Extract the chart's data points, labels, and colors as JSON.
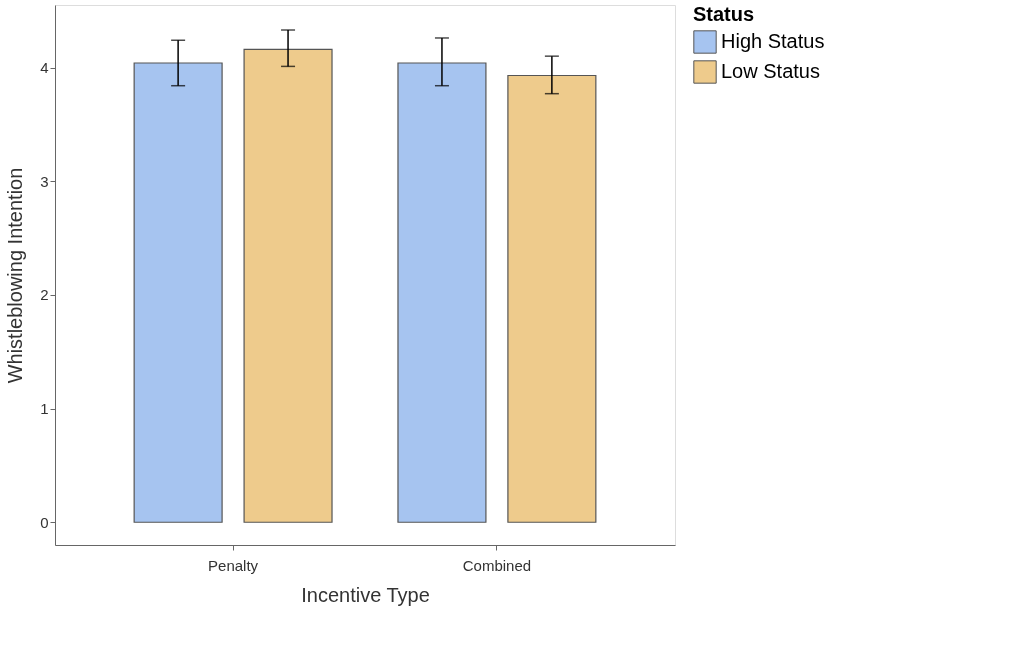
{
  "chart_data": {
    "type": "bar",
    "xlabel": "Incentive Type",
    "ylabel": "Whistleblowing Intention",
    "legend_title": "Status",
    "categories": [
      "Penalty",
      "Combined"
    ],
    "series": [
      {
        "name": "High Status",
        "color": "#a6c4f0",
        "values": [
          4.04,
          4.04
        ],
        "errors": [
          [
            3.84,
            4.24
          ],
          [
            3.84,
            4.26
          ]
        ]
      },
      {
        "name": "Low Status",
        "color": "#eecb8c",
        "values": [
          4.16,
          3.93
        ],
        "errors": [
          [
            4.01,
            4.33
          ],
          [
            3.77,
            4.1
          ]
        ]
      }
    ],
    "ylim": [
      -0.2,
      4.55
    ],
    "yticks": [
      0,
      1,
      2,
      3,
      4
    ],
    "grid": false,
    "legend": "right"
  }
}
